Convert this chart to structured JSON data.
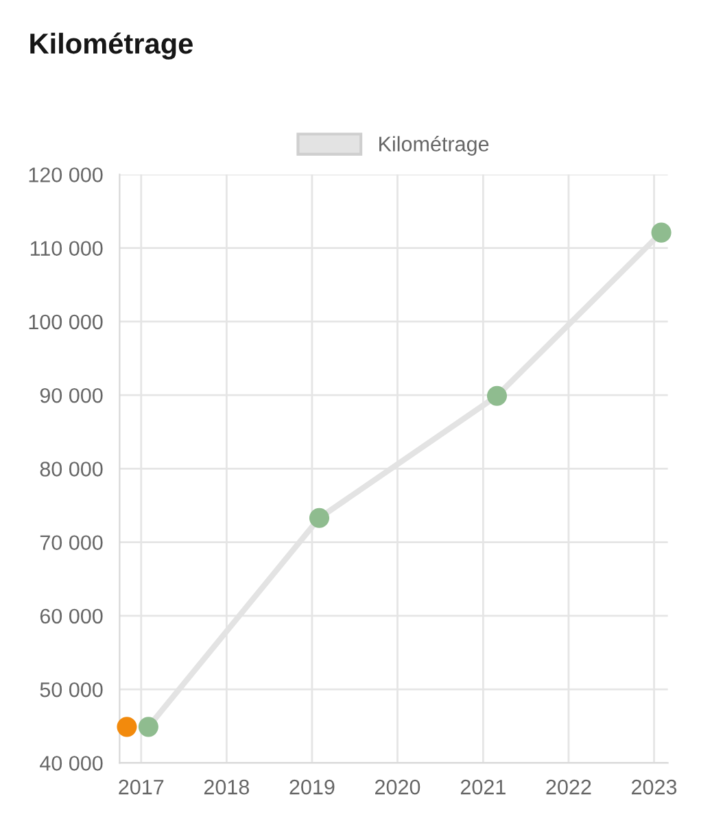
{
  "chart_data": {
    "type": "line",
    "title": "Kilométrage",
    "series": [
      {
        "name": "Kilométrage",
        "color": "#e3e3e3",
        "colors": [
          "#8fbc8f",
          "#8fbc8f",
          "#8fbc8f",
          "#8fbc8f"
        ],
        "x": [
          "2017-02",
          "2019-02",
          "2021-03",
          "2023-02"
        ],
        "values": [
          44900,
          73300,
          89900,
          112100
        ]
      },
      {
        "type": "scatter",
        "color": "#f28a0c",
        "x": [
          "2016-11"
        ],
        "values": [
          44900
        ]
      }
    ],
    "xlim": [
      "2016-10",
      "2023-03"
    ],
    "xticks": [
      "2017",
      "2018",
      "2019",
      "2020",
      "2021",
      "2022",
      "2023"
    ],
    "ylim": [
      40000,
      120000
    ],
    "yticks": [
      {
        "value": 40000,
        "label": "40 000"
      },
      {
        "value": 50000,
        "label": "50 000"
      },
      {
        "value": 60000,
        "label": "60 000"
      },
      {
        "value": 70000,
        "label": "70 000"
      },
      {
        "value": 80000,
        "label": "80 000"
      },
      {
        "value": 90000,
        "label": "90 000"
      },
      {
        "value": 100000,
        "label": "100 000"
      },
      {
        "value": 110000,
        "label": "110 000"
      },
      {
        "value": 120000,
        "label": "120 000"
      }
    ],
    "grid": true,
    "legend": "top",
    "marker": "circle",
    "line_style": "solid"
  }
}
